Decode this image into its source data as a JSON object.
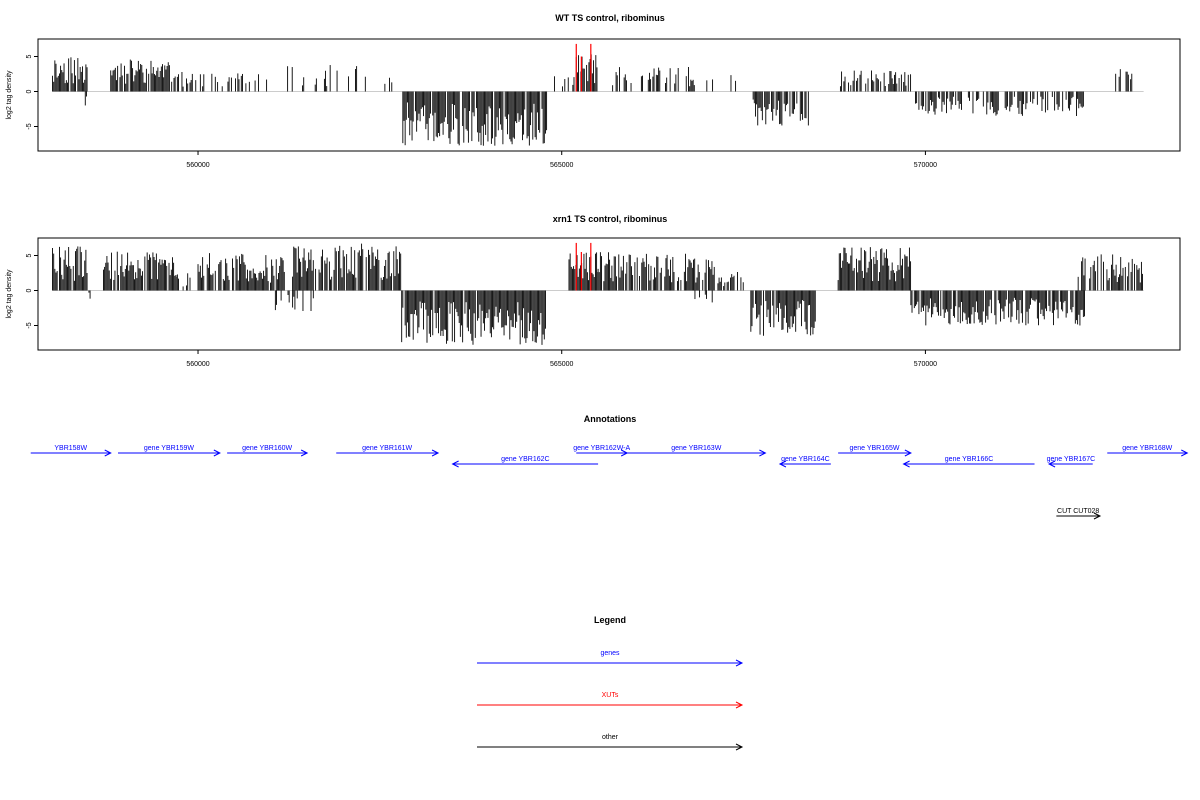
{
  "chart_data": [
    {
      "type": "bar",
      "title": "WT TS control, ribominus",
      "ylabel": "log2 tag density",
      "xlabel": "",
      "xlim": [
        557800,
        573500
      ],
      "ylim": [
        -8.5,
        7.5
      ],
      "xticks": [
        560000,
        565000,
        570000
      ],
      "xtick_labels": [
        "560000",
        "565000",
        "570000"
      ],
      "yticks": [
        -5,
        0,
        5
      ],
      "ytick_labels": [
        "-5",
        "0",
        "5"
      ],
      "grid": false,
      "segments": [
        {
          "strand": "+",
          "color": "#000000",
          "from": 558000,
          "to": 558480,
          "max": 5.0,
          "density": 0.8
        },
        {
          "strand": "-",
          "color": "#000000",
          "from": 558450,
          "to": 558480,
          "max": 2.0,
          "density": 1.0
        },
        {
          "strand": "+",
          "color": "#000000",
          "from": 558800,
          "to": 559700,
          "max": 4.7,
          "density": 0.85
        },
        {
          "strand": "+",
          "color": "#000000",
          "from": 559700,
          "to": 560500,
          "max": 3.3,
          "density": 0.45
        },
        {
          "strand": "+",
          "color": "#000000",
          "from": 560500,
          "to": 561000,
          "max": 2.6,
          "density": 0.4
        },
        {
          "strand": "+",
          "color": "#000000",
          "from": 561200,
          "to": 562300,
          "max": 3.8,
          "density": 0.25
        },
        {
          "strand": "+",
          "color": "#000000",
          "from": 562300,
          "to": 562800,
          "max": 3.0,
          "density": 0.3
        },
        {
          "strand": "-",
          "color": "#000000",
          "from": 562800,
          "to": 564800,
          "max": 7.8,
          "density": 0.95
        },
        {
          "strand": "+",
          "color": "#000000",
          "from": 564900,
          "to": 565200,
          "max": 2.5,
          "density": 0.3
        },
        {
          "strand": "+",
          "color": "#000000",
          "from": 565200,
          "to": 565500,
          "max": 5.3,
          "density": 0.9
        },
        {
          "strand": "+",
          "color": "#000000",
          "from": 565700,
          "to": 566900,
          "max": 3.7,
          "density": 0.45
        },
        {
          "strand": "+",
          "color": "#000000",
          "from": 566900,
          "to": 567500,
          "max": 3.2,
          "density": 0.2
        },
        {
          "strand": "-",
          "color": "#000000",
          "from": 567600,
          "to": 568400,
          "max": 5.0,
          "density": 0.8
        },
        {
          "strand": "+",
          "color": "#000000",
          "from": 568800,
          "to": 569800,
          "max": 3.0,
          "density": 0.45
        },
        {
          "strand": "-",
          "color": "#000000",
          "from": 569800,
          "to": 572200,
          "max": 3.5,
          "density": 0.55
        },
        {
          "strand": "+",
          "color": "#000000",
          "from": 572600,
          "to": 572900,
          "max": 3.2,
          "density": 0.5
        }
      ],
      "highlights": [
        {
          "x": 565200,
          "y": 6.8,
          "color": "#ff0000"
        },
        {
          "x": 565270,
          "y": 5.0,
          "color": "#ff0000"
        },
        {
          "x": 565400,
          "y": 6.8,
          "color": "#ff0000"
        }
      ],
      "seed": 11
    },
    {
      "type": "bar",
      "title": "xrn1 TS control, ribominus",
      "ylabel": "log2 tag density",
      "xlabel": "",
      "xlim": [
        557800,
        573500
      ],
      "ylim": [
        -8.5,
        7.5
      ],
      "xticks": [
        560000,
        565000,
        570000
      ],
      "xtick_labels": [
        "560000",
        "565000",
        "570000"
      ],
      "yticks": [
        -5,
        0,
        5
      ],
      "ytick_labels": [
        "-5",
        "0",
        "5"
      ],
      "grid": false,
      "segments": [
        {
          "strand": "+",
          "color": "#000000",
          "from": 558000,
          "to": 558480,
          "max": 6.5,
          "density": 0.95
        },
        {
          "strand": "-",
          "color": "#000000",
          "from": 558500,
          "to": 558530,
          "max": 1.2,
          "density": 1.0
        },
        {
          "strand": "+",
          "color": "#000000",
          "from": 558700,
          "to": 559700,
          "max": 5.7,
          "density": 0.9
        },
        {
          "strand": "+",
          "color": "#000000",
          "from": 559700,
          "to": 559900,
          "max": 2.5,
          "density": 0.5
        },
        {
          "strand": "+",
          "color": "#000000",
          "from": 560000,
          "to": 561200,
          "max": 5.5,
          "density": 0.9
        },
        {
          "strand": "-",
          "color": "#000000",
          "from": 561000,
          "to": 561600,
          "max": 3.0,
          "density": 0.25
        },
        {
          "strand": "+",
          "color": "#000000",
          "from": 561300,
          "to": 562800,
          "max": 6.7,
          "density": 0.85
        },
        {
          "strand": "-",
          "color": "#000000",
          "from": 562800,
          "to": 564800,
          "max": 7.8,
          "density": 0.95
        },
        {
          "strand": "+",
          "color": "#000000",
          "from": 565100,
          "to": 565500,
          "max": 5.5,
          "density": 0.9
        },
        {
          "strand": "+",
          "color": "#000000",
          "from": 565500,
          "to": 567100,
          "max": 5.7,
          "density": 0.8
        },
        {
          "strand": "-",
          "color": "#000000",
          "from": 566800,
          "to": 567100,
          "max": 2.0,
          "density": 0.3
        },
        {
          "strand": "+",
          "color": "#000000",
          "from": 567100,
          "to": 567600,
          "max": 2.8,
          "density": 0.4
        },
        {
          "strand": "-",
          "color": "#000000",
          "from": 567600,
          "to": 568500,
          "max": 6.5,
          "density": 0.9
        },
        {
          "strand": "+",
          "color": "#000000",
          "from": 568800,
          "to": 569800,
          "max": 6.2,
          "density": 0.95
        },
        {
          "strand": "-",
          "color": "#000000",
          "from": 569800,
          "to": 572200,
          "max": 5.0,
          "density": 0.85
        },
        {
          "strand": "+",
          "color": "#000000",
          "from": 572100,
          "to": 573000,
          "max": 5.2,
          "density": 0.65
        }
      ],
      "highlights": [
        {
          "x": 565200,
          "y": 6.8,
          "color": "#ff0000"
        },
        {
          "x": 565270,
          "y": 5.5,
          "color": "#ff0000"
        },
        {
          "x": 565400,
          "y": 6.8,
          "color": "#ff0000"
        }
      ],
      "seed": 29
    }
  ],
  "annotations": {
    "title": "Annotations",
    "xlim": [
      557800,
      573500
    ],
    "genes": [
      {
        "label": "YBR158W",
        "start": 557700,
        "end": 558800,
        "strand": "+",
        "color": "#0000ff",
        "row": 0
      },
      {
        "label": "gene YBR159W",
        "start": 558900,
        "end": 560300,
        "strand": "+",
        "color": "#0000ff",
        "row": 0
      },
      {
        "label": "gene YBR160W",
        "start": 560400,
        "end": 561500,
        "strand": "+",
        "color": "#0000ff",
        "row": 0
      },
      {
        "label": "gene YBR161W",
        "start": 561900,
        "end": 563300,
        "strand": "+",
        "color": "#0000ff",
        "row": 0
      },
      {
        "label": "gene YBR162C",
        "start": 563500,
        "end": 565500,
        "strand": "-",
        "color": "#0000ff",
        "row": 1
      },
      {
        "label": "gene YBR162W-A",
        "start": 565200,
        "end": 565900,
        "strand": "+",
        "color": "#0000ff",
        "row": 0
      },
      {
        "label": "gene YBR163W",
        "start": 565900,
        "end": 567800,
        "strand": "+",
        "color": "#0000ff",
        "row": 0
      },
      {
        "label": "gene YBR164C",
        "start": 568000,
        "end": 568700,
        "strand": "-",
        "color": "#0000ff",
        "row": 1
      },
      {
        "label": "gene YBR165W",
        "start": 568800,
        "end": 569800,
        "strand": "+",
        "color": "#0000ff",
        "row": 0
      },
      {
        "label": "gene YBR166C",
        "start": 569700,
        "end": 571500,
        "strand": "-",
        "color": "#0000ff",
        "row": 1
      },
      {
        "label": "gene YBR167C",
        "start": 571700,
        "end": 572300,
        "strand": "-",
        "color": "#0000ff",
        "row": 1
      },
      {
        "label": "gene YBR168W",
        "start": 572500,
        "end": 573600,
        "strand": "+",
        "color": "#0000ff",
        "row": 0
      },
      {
        "label": "CUT CUT028",
        "start": 571800,
        "end": 572400,
        "strand": "+",
        "color": "#000000",
        "row": 2
      }
    ]
  },
  "legend": {
    "title": "Legend",
    "items": [
      {
        "label": "genes",
        "color": "#0000ff"
      },
      {
        "label": "XUTs",
        "color": "#ff0000"
      },
      {
        "label": "other",
        "color": "#000000"
      }
    ]
  }
}
